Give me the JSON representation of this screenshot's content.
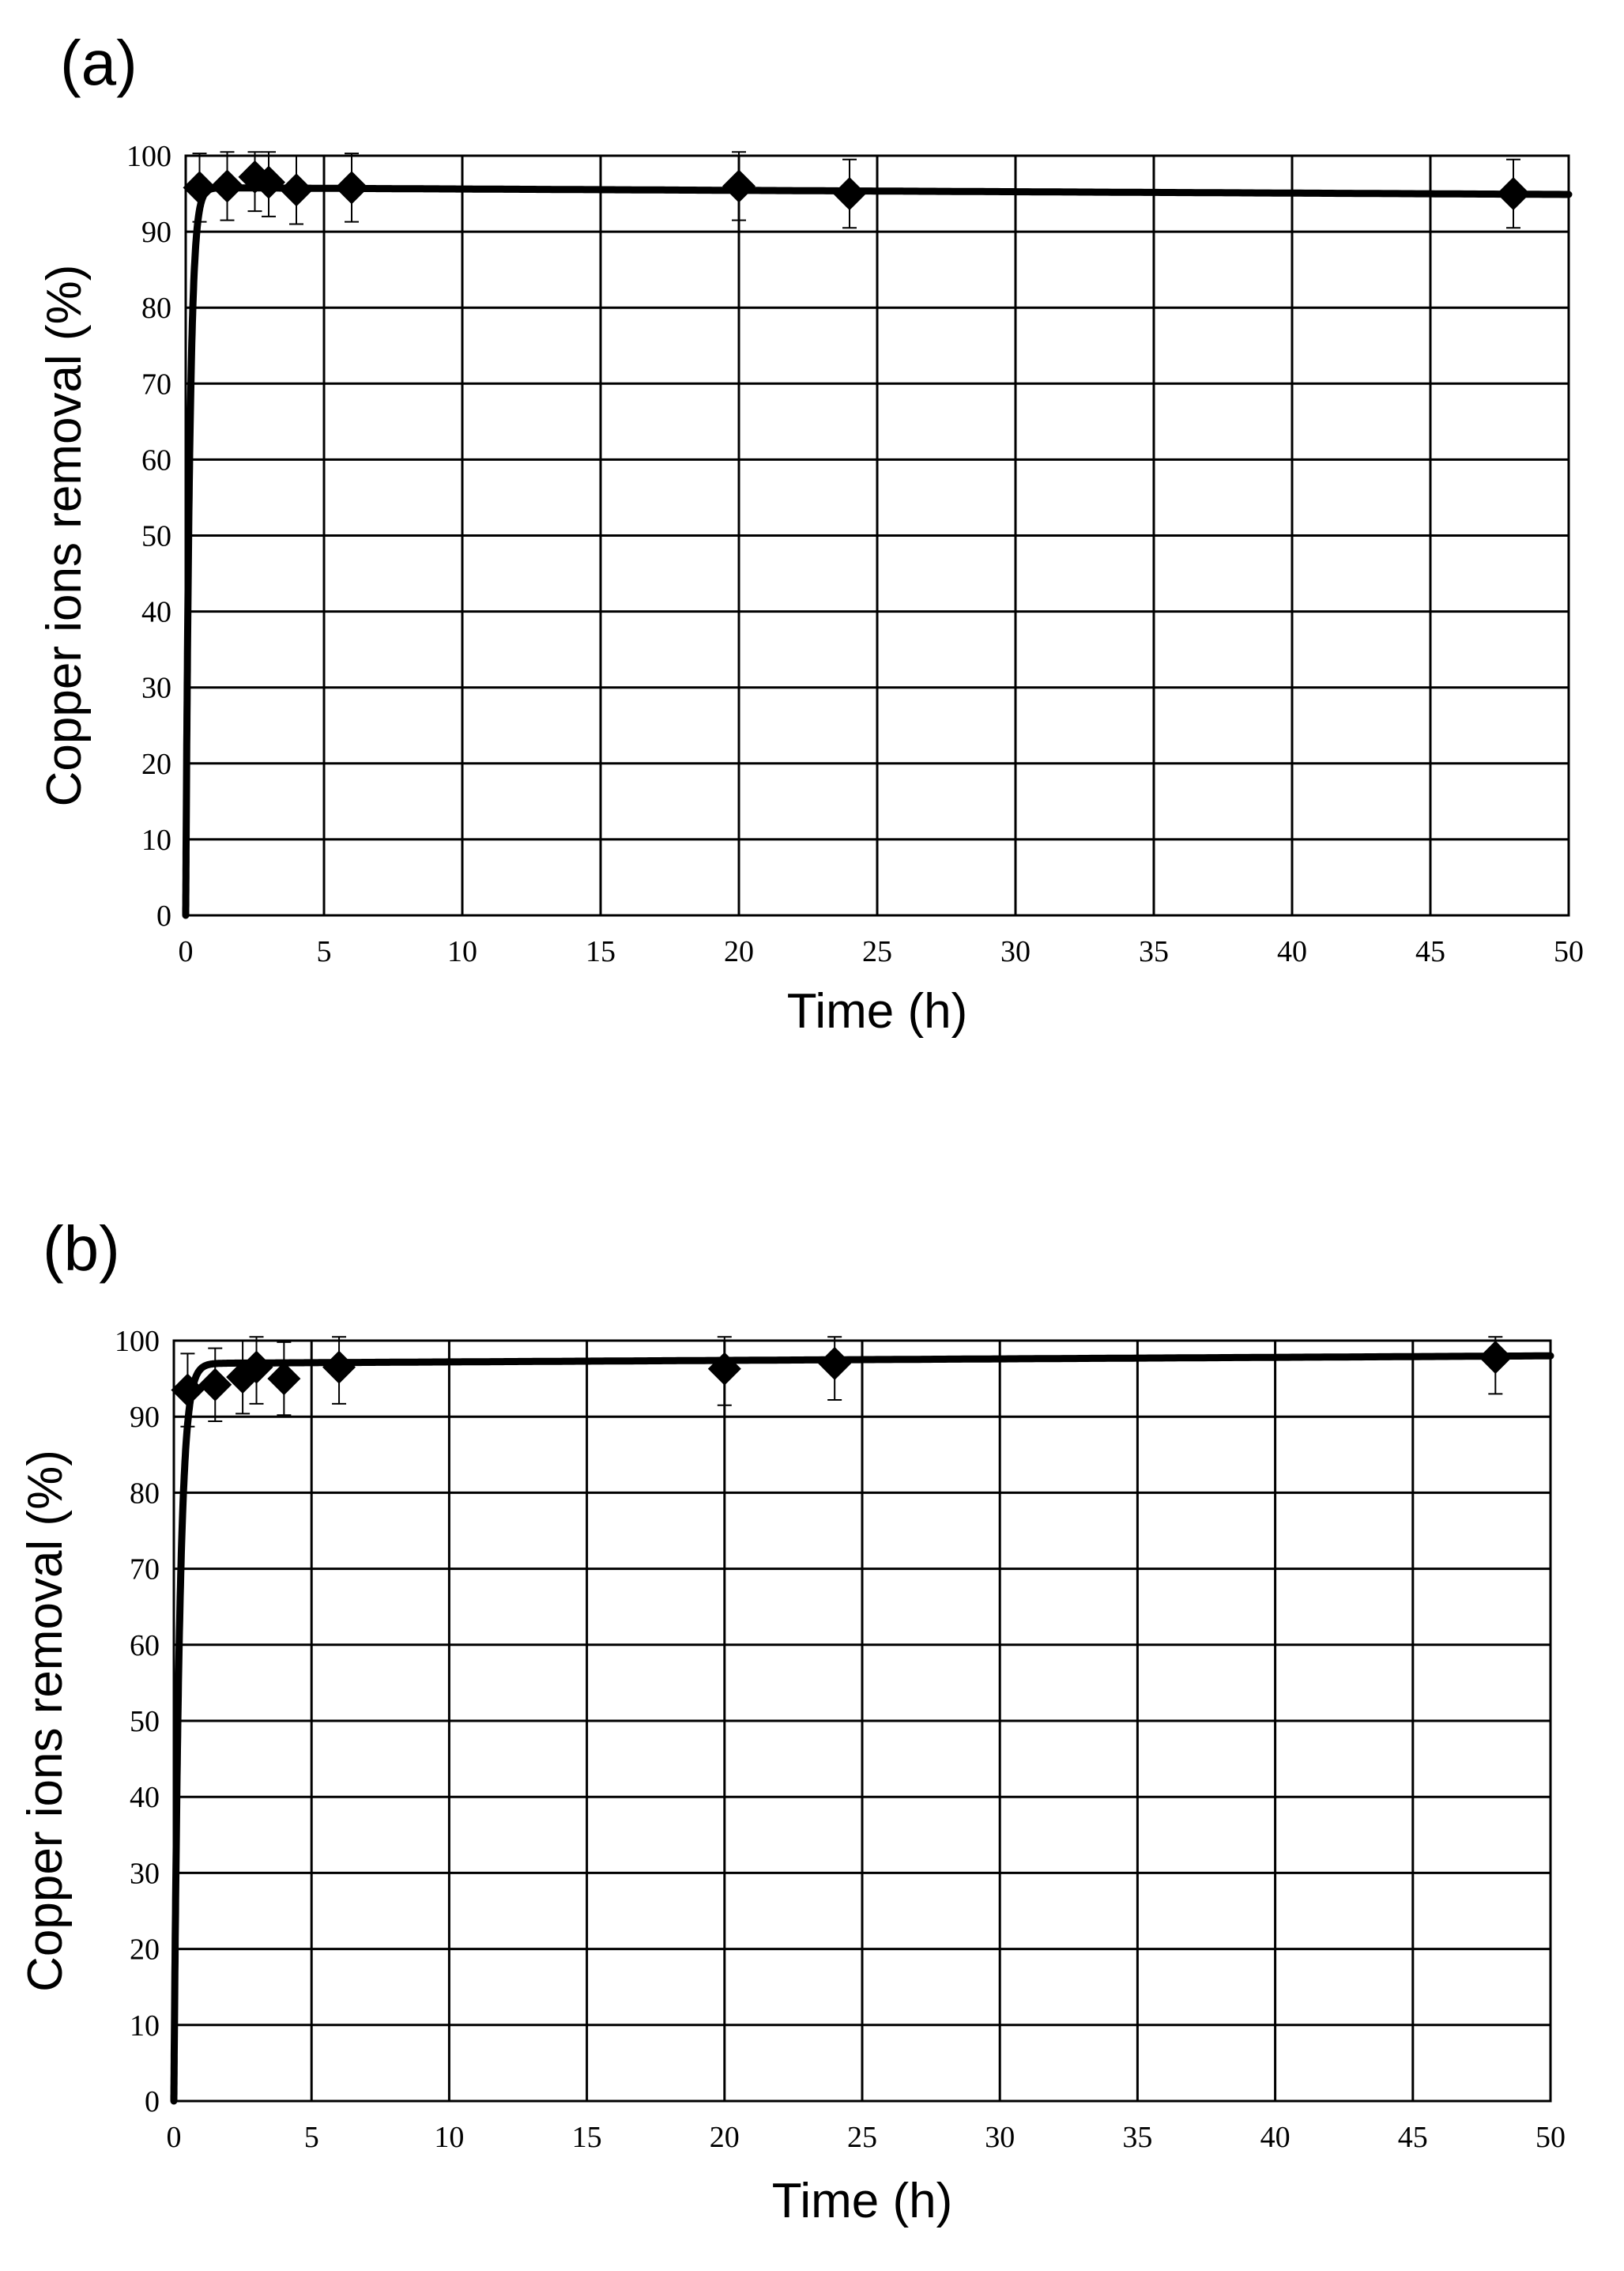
{
  "chart_data": [
    {
      "panel_label": "(a)",
      "type": "scatter",
      "xlabel": "Time (h)",
      "ylabel": "Copper ions removal (%)",
      "xlim": [
        0,
        50
      ],
      "ylim": [
        0,
        100
      ],
      "xticks": [
        0,
        5,
        10,
        15,
        20,
        25,
        30,
        35,
        40,
        45,
        50
      ],
      "yticks": [
        0,
        10,
        20,
        30,
        40,
        50,
        60,
        70,
        80,
        90,
        100
      ],
      "grid": true,
      "series": [
        {
          "marker": "diamond",
          "color": "#000000",
          "points": [
            {
              "x": 0.5,
              "y": 95.8,
              "err": 4.5
            },
            {
              "x": 1.5,
              "y": 96.0,
              "err": 4.5
            },
            {
              "x": 2.5,
              "y": 97.2,
              "err": 4.5
            },
            {
              "x": 3.0,
              "y": 96.5,
              "err": 4.5
            },
            {
              "x": 4.0,
              "y": 95.5,
              "err": 4.5
            },
            {
              "x": 6.0,
              "y": 95.8,
              "err": 4.5
            },
            {
              "x": 20.0,
              "y": 96.0,
              "err": 4.5
            },
            {
              "x": 24.0,
              "y": 95.0,
              "err": 4.5
            },
            {
              "x": 48.0,
              "y": 95.0,
              "err": 4.5
            }
          ]
        }
      ],
      "fit_curve": {
        "type": "saturation",
        "plateau": 95.8,
        "rate": 7.0,
        "slope": -0.018
      }
    },
    {
      "panel_label": "(b)",
      "type": "scatter",
      "xlabel": "Time (h)",
      "ylabel": "Copper ions removal (%)",
      "xlim": [
        0,
        50
      ],
      "ylim": [
        0,
        100
      ],
      "xticks": [
        0,
        5,
        10,
        15,
        20,
        25,
        30,
        35,
        40,
        45,
        50
      ],
      "yticks": [
        0,
        10,
        20,
        30,
        40,
        50,
        60,
        70,
        80,
        90,
        100
      ],
      "grid": true,
      "series": [
        {
          "marker": "diamond",
          "color": "#000000",
          "points": [
            {
              "x": 0.5,
              "y": 93.5,
              "err": 4.8
            },
            {
              "x": 1.5,
              "y": 94.2,
              "err": 4.8
            },
            {
              "x": 2.5,
              "y": 95.2,
              "err": 4.8
            },
            {
              "x": 3.0,
              "y": 96.5,
              "err": 4.8
            },
            {
              "x": 4.0,
              "y": 95.0,
              "err": 4.8
            },
            {
              "x": 6.0,
              "y": 96.5,
              "err": 4.8
            },
            {
              "x": 20.0,
              "y": 96.3,
              "err": 4.8
            },
            {
              "x": 24.0,
              "y": 97.0,
              "err": 4.8
            },
            {
              "x": 48.0,
              "y": 97.8,
              "err": 4.8
            }
          ]
        }
      ],
      "fit_curve": {
        "type": "saturation",
        "plateau": 97.0,
        "rate": 5.0,
        "slope": 0.02
      }
    }
  ]
}
